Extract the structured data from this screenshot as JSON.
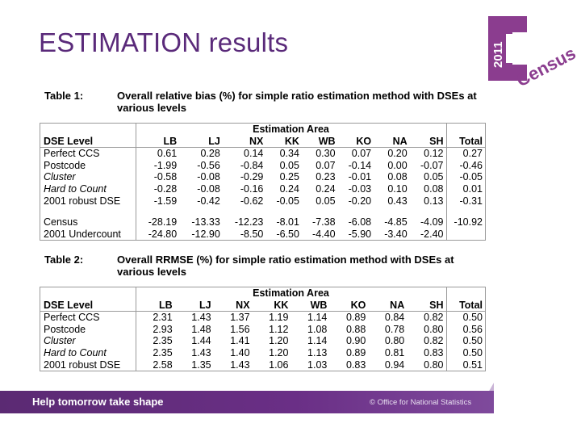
{
  "slide": {
    "title": "ESTIMATION results"
  },
  "logo": {
    "year": "2011",
    "word": "Census",
    "color": "#8b3d8f"
  },
  "table1": {
    "label": "Table 1:",
    "caption": "Overall relative bias (%) for simple ratio estimation method with DSEs at various levels",
    "group_header": "Estimation Area",
    "columns": [
      "DSE Level",
      "LB",
      "LJ",
      "NX",
      "KK",
      "WB",
      "KO",
      "NA",
      "SH",
      "Total"
    ],
    "rows": [
      {
        "label": "Perfect CCS",
        "italic": false,
        "values": [
          "0.61",
          "0.28",
          "0.14",
          "0.34",
          "0.30",
          "0.07",
          "0.20",
          "0.12",
          "0.27"
        ]
      },
      {
        "label": "Postcode",
        "italic": false,
        "values": [
          "-1.99",
          "-0.56",
          "-0.84",
          "0.05",
          "0.07",
          "-0.14",
          "0.00",
          "-0.07",
          "-0.46"
        ]
      },
      {
        "label": "Cluster",
        "italic": true,
        "values": [
          "-0.58",
          "-0.08",
          "-0.29",
          "0.25",
          "0.23",
          "-0.01",
          "0.08",
          "0.05",
          "-0.05"
        ]
      },
      {
        "label": "Hard to Count",
        "italic": true,
        "values": [
          "-0.28",
          "-0.08",
          "-0.16",
          "0.24",
          "0.24",
          "-0.03",
          "0.10",
          "0.08",
          "0.01"
        ]
      },
      {
        "label": "2001 robust DSE",
        "italic": false,
        "values": [
          "-1.59",
          "-0.42",
          "-0.62",
          "-0.05",
          "0.05",
          "-0.20",
          "0.43",
          "0.13",
          "-0.31"
        ]
      }
    ],
    "extra_rows": [
      {
        "label": "Census",
        "values": [
          "-28.19",
          "-13.33",
          "-12.23",
          "-8.01",
          "-7.38",
          "-6.08",
          "-4.85",
          "-4.09",
          "-10.92"
        ]
      },
      {
        "label": "2001 Undercount",
        "values": [
          "-24.80",
          "-12.90",
          "-8.50",
          "-6.50",
          "-4.40",
          "-5.90",
          "-3.40",
          "-2.40",
          ""
        ]
      }
    ]
  },
  "table2": {
    "label": "Table 2:",
    "caption": "Overall RRMSE (%) for simple ratio estimation method with DSEs at various levels",
    "group_header": "Estimation Area",
    "columns": [
      "DSE Level",
      "LB",
      "LJ",
      "NX",
      "KK",
      "WB",
      "KO",
      "NA",
      "SH",
      "Total"
    ],
    "rows": [
      {
        "label": "Perfect CCS",
        "italic": false,
        "values": [
          "2.31",
          "1.43",
          "1.37",
          "1.19",
          "1.14",
          "0.89",
          "0.84",
          "0.82",
          "0.50"
        ]
      },
      {
        "label": "Postcode",
        "italic": false,
        "values": [
          "2.93",
          "1.48",
          "1.56",
          "1.12",
          "1.08",
          "0.88",
          "0.78",
          "0.80",
          "0.56"
        ]
      },
      {
        "label": "Cluster",
        "italic": true,
        "values": [
          "2.35",
          "1.44",
          "1.41",
          "1.20",
          "1.14",
          "0.90",
          "0.80",
          "0.82",
          "0.50"
        ]
      },
      {
        "label": "Hard to Count",
        "italic": true,
        "values": [
          "2.35",
          "1.43",
          "1.40",
          "1.20",
          "1.13",
          "0.89",
          "0.81",
          "0.83",
          "0.50"
        ]
      },
      {
        "label": "2001 robust DSE",
        "italic": false,
        "values": [
          "2.58",
          "1.35",
          "1.43",
          "1.06",
          "1.03",
          "0.83",
          "0.94",
          "0.80",
          "0.51"
        ]
      }
    ]
  },
  "footer": {
    "slogan": "Help tomorrow take shape",
    "copyright": "© Office for National Statistics",
    "color": "#5b2a73"
  }
}
